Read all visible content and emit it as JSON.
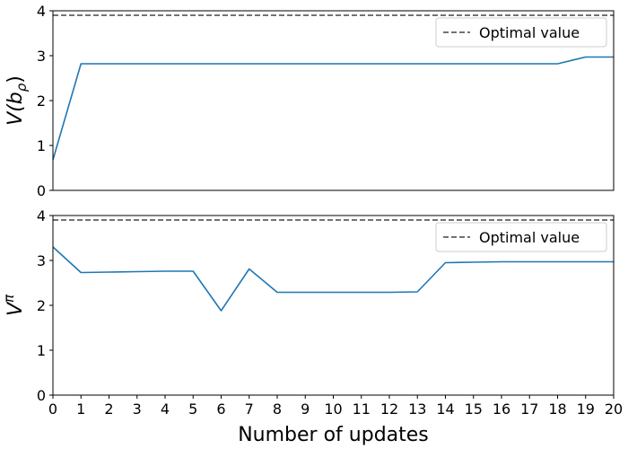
{
  "chart_data": [
    {
      "type": "line",
      "ylabel": "V(bρ)",
      "ylim": [
        0,
        4
      ],
      "xlim": [
        0,
        20
      ],
      "yticks": [
        0,
        1,
        2,
        3,
        4
      ],
      "show_xticks": false,
      "legend_placement": "top-right",
      "series": [
        {
          "color": "#1f77b4",
          "x": [
            0,
            1,
            2,
            3,
            4,
            5,
            6,
            7,
            8,
            9,
            10,
            11,
            12,
            13,
            14,
            15,
            16,
            17,
            18,
            19,
            20
          ],
          "values": [
            0.68,
            2.82,
            2.82,
            2.82,
            2.82,
            2.82,
            2.82,
            2.82,
            2.82,
            2.82,
            2.82,
            2.82,
            2.82,
            2.82,
            2.82,
            2.82,
            2.82,
            2.82,
            2.82,
            2.97,
            2.97
          ]
        }
      ],
      "reference_line": {
        "name": "Optimal value",
        "y": 3.9,
        "color": "#444444",
        "style": "dashed"
      }
    },
    {
      "type": "line",
      "ylabel": "Vπ",
      "xlabel": "Number of updates",
      "ylim": [
        0,
        4
      ],
      "xlim": [
        0,
        20
      ],
      "yticks": [
        0,
        1,
        2,
        3,
        4
      ],
      "xticks": [
        0,
        1,
        2,
        3,
        4,
        5,
        6,
        7,
        8,
        9,
        10,
        11,
        12,
        13,
        14,
        15,
        16,
        17,
        18,
        19,
        20
      ],
      "show_xticks": true,
      "legend_placement": "top-right",
      "series": [
        {
          "color": "#1f77b4",
          "x": [
            0,
            1,
            2,
            3,
            4,
            5,
            6,
            7,
            8,
            9,
            10,
            11,
            12,
            13,
            14,
            15,
            16,
            17,
            18,
            19,
            20
          ],
          "values": [
            3.3,
            2.73,
            2.74,
            2.75,
            2.76,
            2.76,
            1.88,
            2.81,
            2.29,
            2.29,
            2.29,
            2.29,
            2.29,
            2.3,
            2.95,
            2.96,
            2.97,
            2.97,
            2.97,
            2.97,
            2.97
          ]
        }
      ],
      "reference_line": {
        "name": "Optimal value",
        "y": 3.9,
        "color": "#444444",
        "style": "dashed"
      }
    }
  ]
}
